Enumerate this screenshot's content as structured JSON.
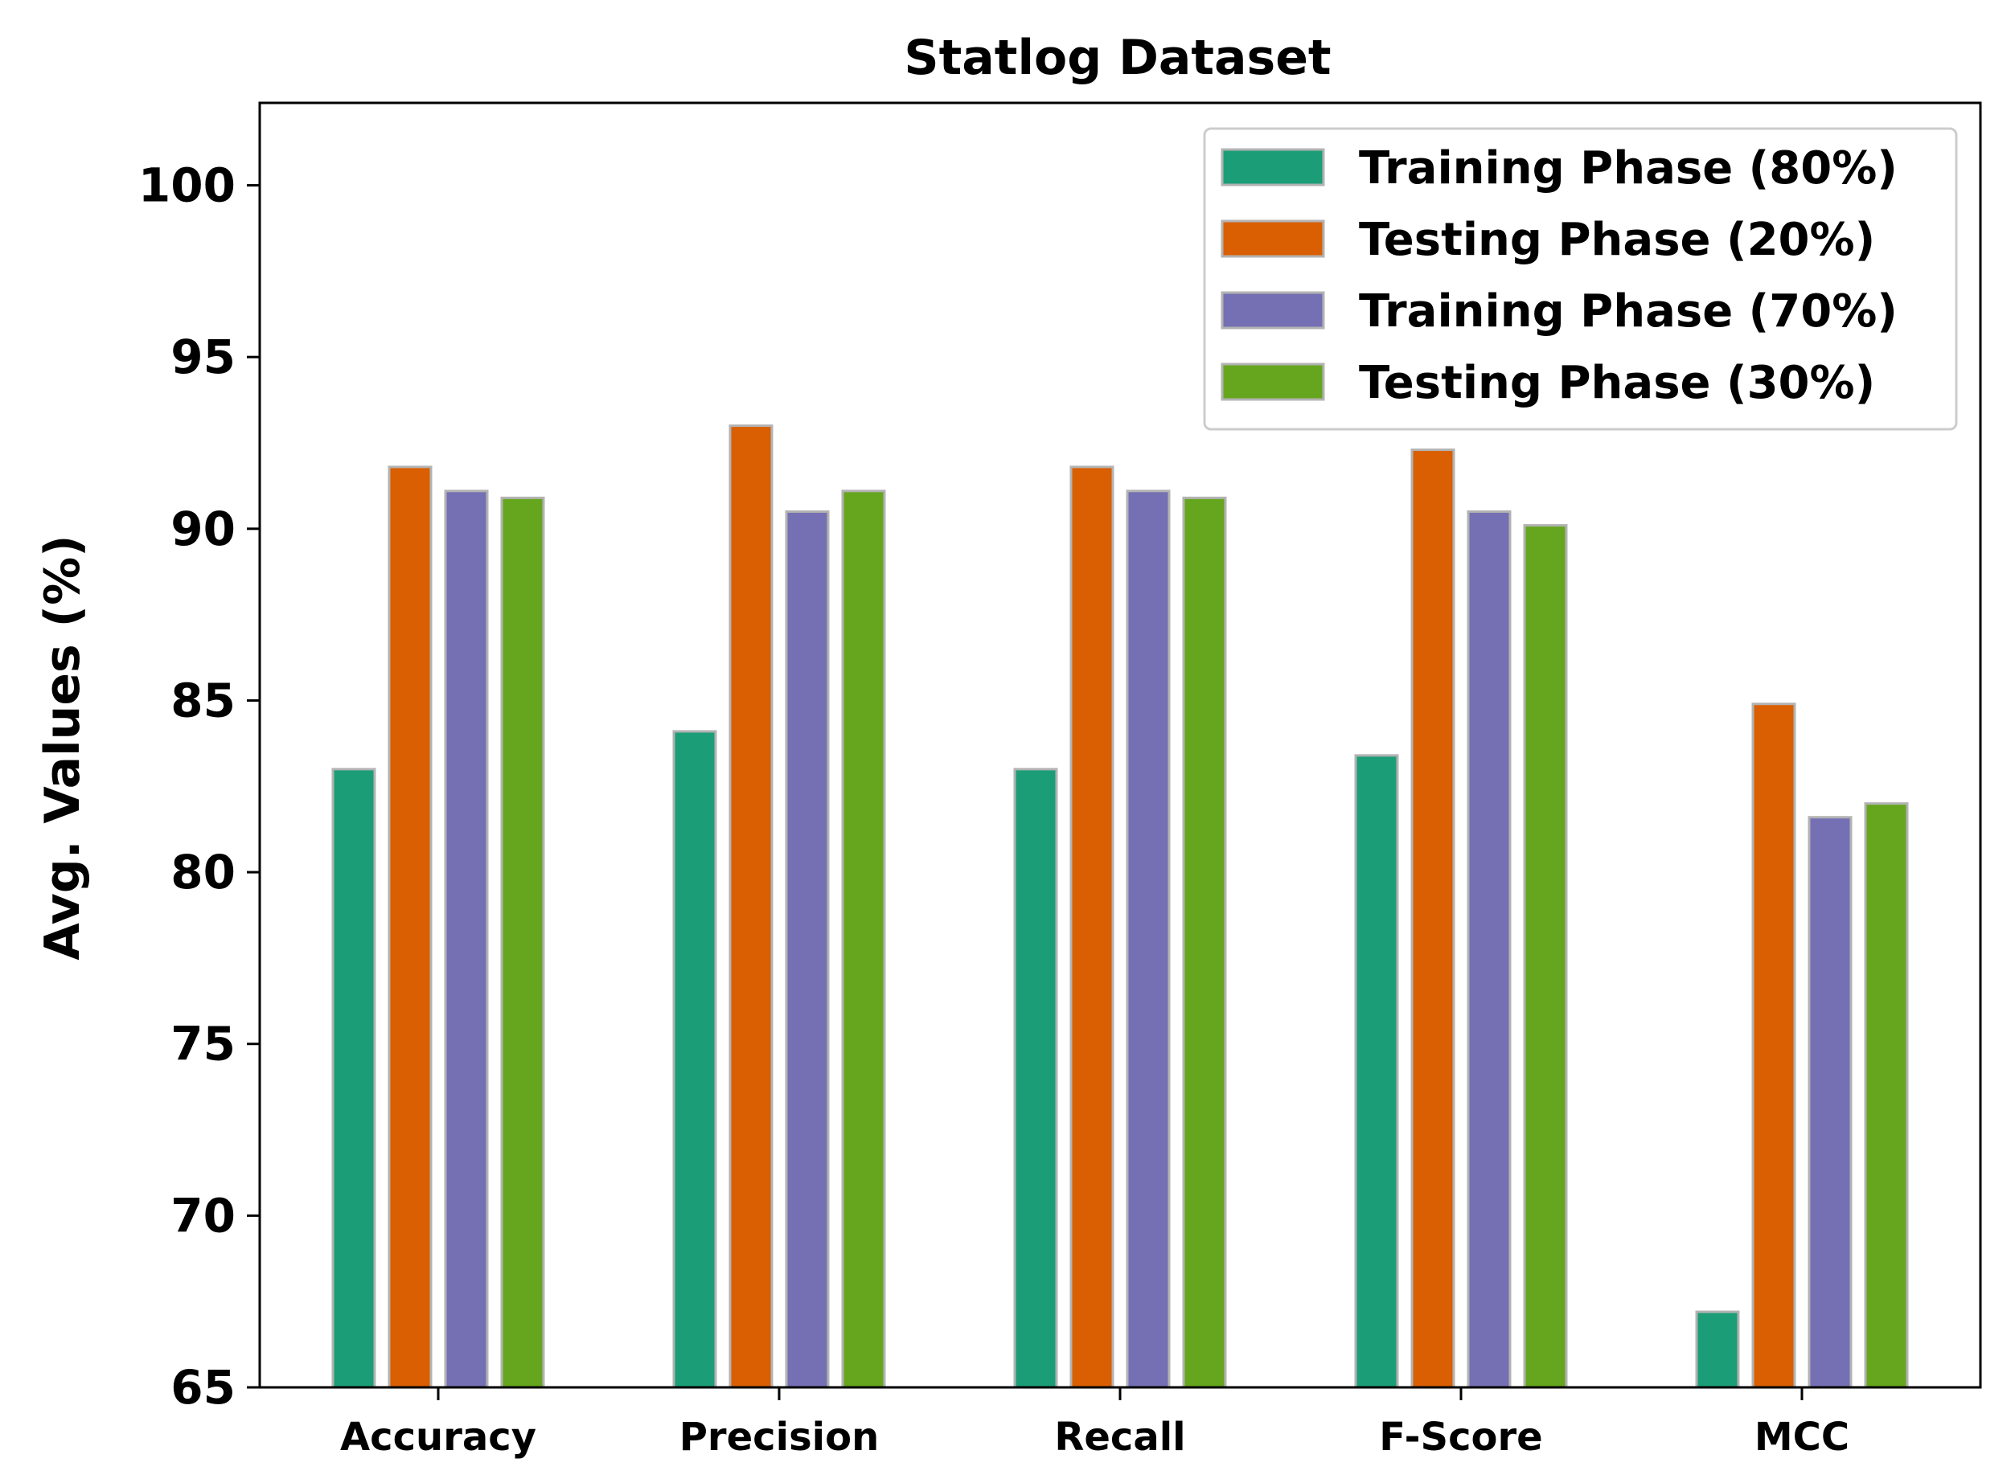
{
  "chart_data": {
    "type": "bar",
    "title": "Statlog Dataset",
    "xlabel": "",
    "ylabel": "Avg. Values (%)",
    "ylim": [
      65,
      102.4
    ],
    "yticks": [
      65,
      70,
      75,
      80,
      85,
      90,
      95,
      100
    ],
    "grid": false,
    "legend_position": "top-right",
    "categories": [
      "Accuracy",
      "Precision",
      "Recall",
      "F-Score",
      "MCC"
    ],
    "series": [
      {
        "name": "Training Phase (80%)",
        "color": "#1b9e77",
        "values": [
          83.0,
          84.1,
          83.0,
          83.4,
          67.2
        ]
      },
      {
        "name": "Testing Phase (20%)",
        "color": "#d95f02",
        "values": [
          91.8,
          93.0,
          91.8,
          92.3,
          84.9
        ]
      },
      {
        "name": "Training Phase (70%)",
        "color": "#7570b3",
        "values": [
          91.1,
          90.5,
          91.1,
          90.5,
          81.6
        ]
      },
      {
        "name": "Testing Phase (30%)",
        "color": "#66a61e",
        "values": [
          90.9,
          91.1,
          90.9,
          90.1,
          82.0
        ]
      }
    ]
  }
}
